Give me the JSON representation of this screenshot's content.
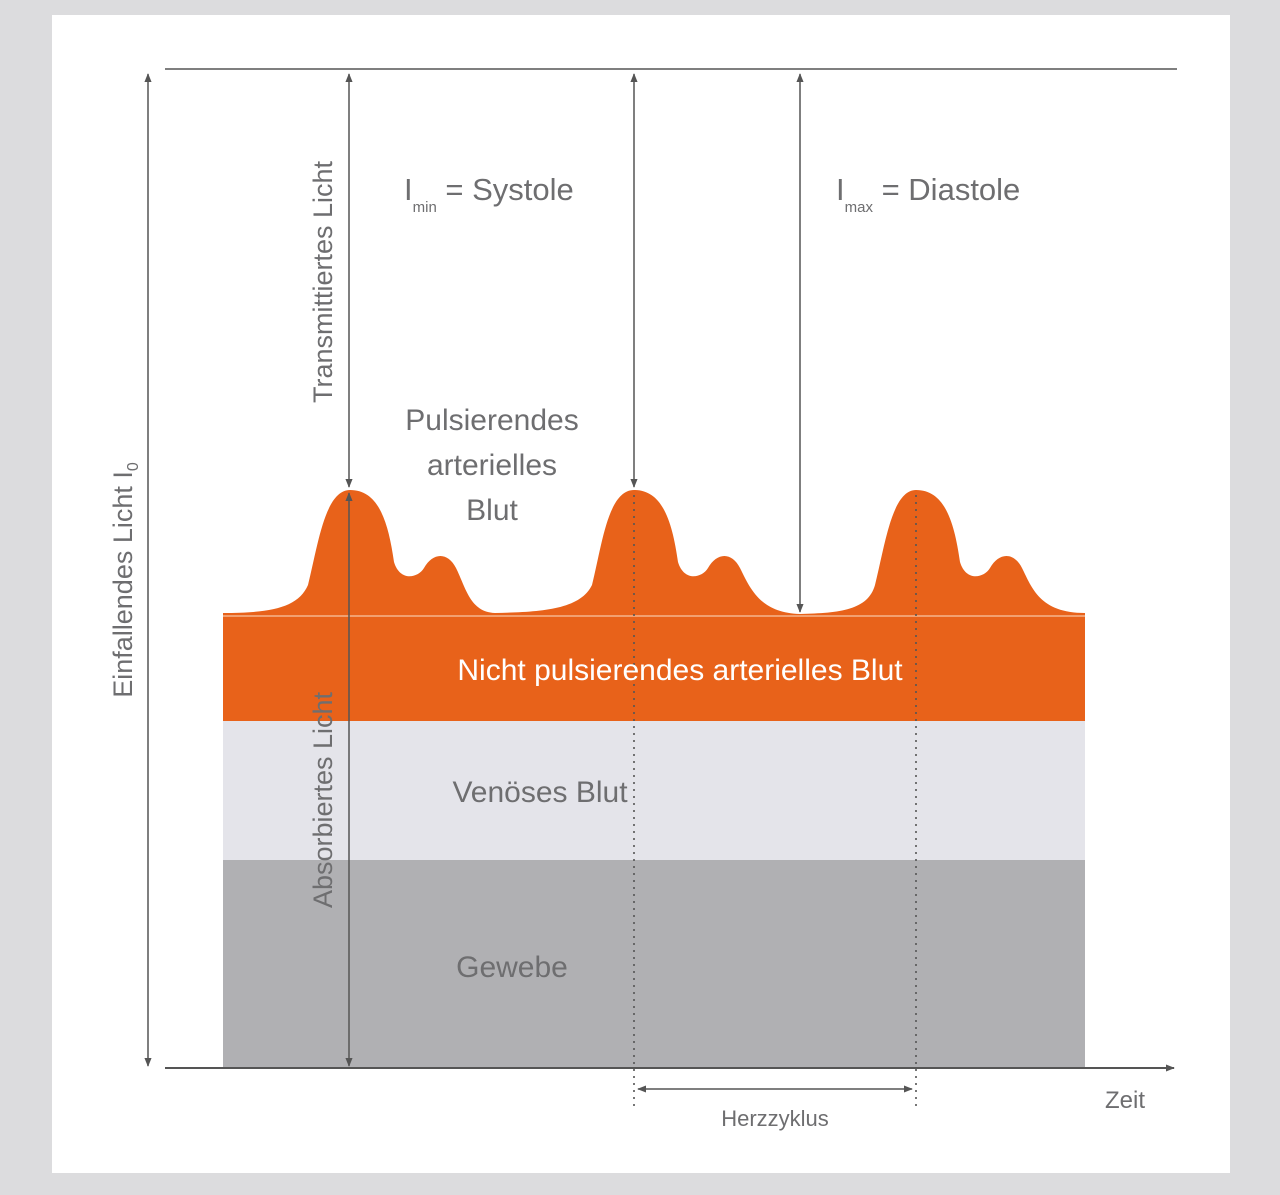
{
  "labels": {
    "incident_light": "Einfallendes Licht I",
    "incident_light_sub": "0",
    "transmitted_light": "Transmittiertes Licht",
    "absorbed_light": "Absorbiertes Licht",
    "imin_main": "I",
    "imin_sub": "min",
    "imin_eq": " = Systole",
    "imax_main": "I",
    "imax_sub": "max",
    "imax_eq": " = Diastole",
    "pulsing_line1": "Pulsierendes",
    "pulsing_line2": "arterielles",
    "pulsing_line3": "Blut",
    "non_pulsing": "Nicht pulsierendes arterielles Blut",
    "venous": "Venöses Blut",
    "tissue": "Gewebe",
    "cycle": "Herzzyklus",
    "time": "Zeit"
  },
  "colors": {
    "background": "#dcdcde",
    "panel": "#ffffff",
    "arterial": "#e8621a",
    "venous": "#e4e4ea",
    "tissue": "#b0b0b3",
    "line": "#555555",
    "text_gray": "#6e6e70",
    "text_white": "#ffffff"
  }
}
